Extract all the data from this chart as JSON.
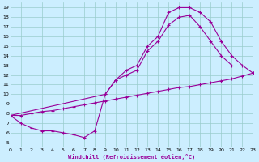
{
  "xlabel": "Windchill (Refroidissement éolien,°C)",
  "xlim": [
    0,
    23
  ],
  "ylim": [
    5,
    19
  ],
  "xticks": [
    0,
    1,
    2,
    3,
    4,
    5,
    6,
    7,
    8,
    9,
    10,
    11,
    12,
    13,
    14,
    15,
    16,
    17,
    18,
    19,
    20,
    21,
    22,
    23
  ],
  "yticks": [
    5,
    6,
    7,
    8,
    9,
    10,
    11,
    12,
    13,
    14,
    15,
    16,
    17,
    18,
    19
  ],
  "bg_color": "#cceeff",
  "line_color": "#990099",
  "grid_color": "#99cccc",
  "line1_x": [
    0,
    1,
    2,
    3,
    4,
    5,
    6,
    7,
    8,
    9,
    10,
    11,
    12,
    13,
    14,
    15,
    16,
    17,
    18,
    19,
    20,
    21,
    22,
    23
  ],
  "line1_y": [
    7.8,
    7.0,
    6.5,
    6.2,
    6.2,
    6.0,
    5.8,
    5.5,
    6.2,
    10.0,
    11.5,
    12.5,
    13.0,
    15.0,
    16.0,
    18.5,
    19.0,
    19.0,
    18.5,
    17.5,
    15.5,
    14.0,
    13.0,
    12.2
  ],
  "line2_x": [
    0,
    9,
    10,
    11,
    12,
    13,
    14,
    15,
    16,
    17,
    18,
    19,
    20,
    21
  ],
  "line2_y": [
    7.8,
    10.0,
    11.5,
    12.0,
    12.5,
    14.5,
    15.5,
    17.2,
    18.0,
    18.2,
    17.0,
    15.5,
    14.0,
    13.0
  ],
  "line3_x": [
    0,
    1,
    2,
    3,
    4,
    5,
    6,
    7,
    8,
    9,
    10,
    11,
    12,
    13,
    14,
    15,
    16,
    17,
    18,
    19,
    20,
    21,
    22,
    23
  ],
  "line3_y": [
    7.8,
    7.8,
    8.0,
    8.2,
    8.3,
    8.5,
    8.7,
    8.9,
    9.1,
    9.3,
    9.5,
    9.7,
    9.9,
    10.1,
    10.3,
    10.5,
    10.7,
    10.8,
    11.0,
    11.2,
    11.4,
    11.6,
    11.9,
    12.2
  ]
}
